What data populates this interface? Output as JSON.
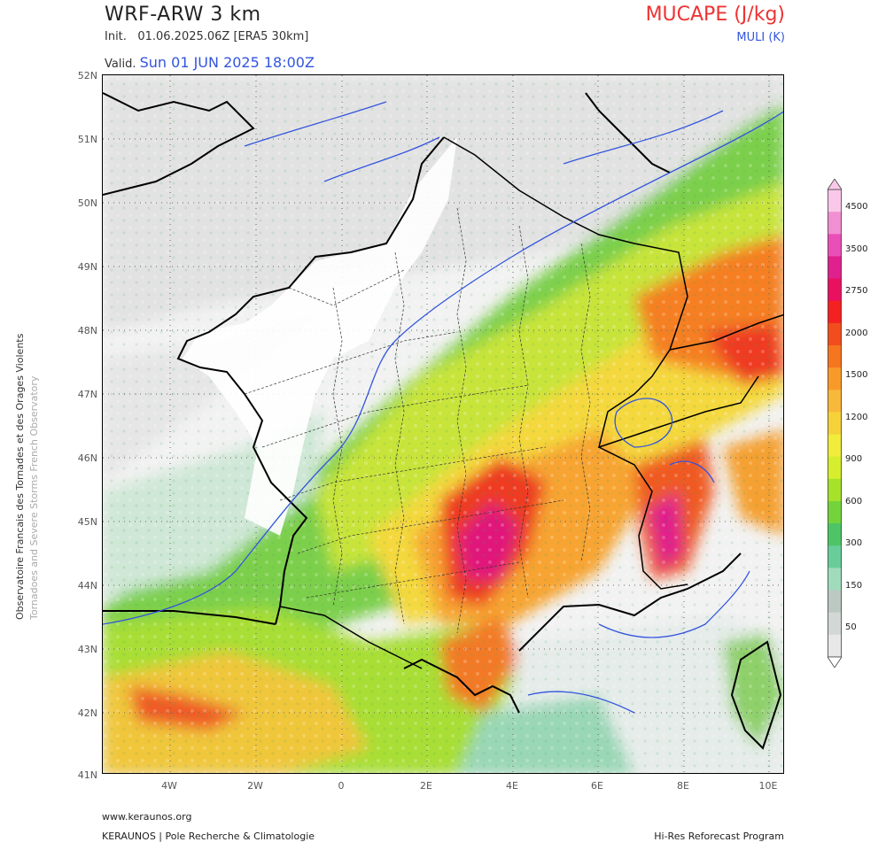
{
  "header": {
    "title": "WRF-ARW 3 km",
    "init_label": "Init.",
    "init_value": "01.06.2025.06Z [ERA5 30km]",
    "valid_label": "Valid.",
    "valid_value": "Sun 01 JUN 2025 18:00Z",
    "parameter": "MUCAPE (J/kg)",
    "parameter2": "MULI (K)"
  },
  "side_text": {
    "line1": "Observatoire Francais des Tornades et des Orages Violents",
    "line2": "Tornadoes and Severe Storms French Observatory"
  },
  "axes": {
    "lat_labels": [
      "52N",
      "51N",
      "50N",
      "49N",
      "48N",
      "47N",
      "46N",
      "45N",
      "44N",
      "43N",
      "42N",
      "41N"
    ],
    "lon_labels": [
      "4W",
      "2W",
      "0",
      "2E",
      "4E",
      "6E",
      "8E",
      "10E"
    ]
  },
  "colorbar": {
    "labels": [
      "4500",
      "3500",
      "2750",
      "2000",
      "1500",
      "1200",
      "900",
      "600",
      "300",
      "150",
      "50"
    ],
    "colors": [
      "#f9c8e9",
      "#f08fd2",
      "#ea4fb8",
      "#e0208c",
      "#ea1060",
      "#f52020",
      "#f24d1c",
      "#f5761e",
      "#f89a2a",
      "#f8b83a",
      "#f6d23a",
      "#f2ec3c",
      "#d6ee2e",
      "#a6e22a",
      "#72d43a",
      "#4dc566",
      "#68cd9a",
      "#a0dcbc",
      "#bcc9c3",
      "#d3d8d6",
      "#e8e8e8"
    ]
  },
  "footer": {
    "url": "www.keraunos.org",
    "org": "KERAUNOS | Pole Recherche & Climatologie",
    "program": "Hi-Res Reforecast Program"
  }
}
